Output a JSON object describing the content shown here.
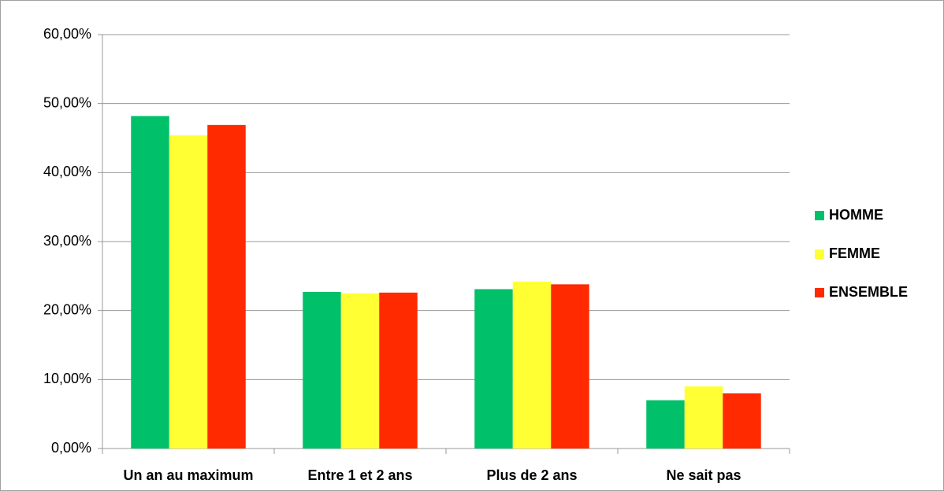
{
  "chart_data": {
    "type": "bar",
    "categories": [
      "Un an au maximum",
      "Entre 1 et 2 ans",
      "Plus de 2 ans",
      "Ne sait pas"
    ],
    "series": [
      {
        "name": "HOMME",
        "color": "#00c06a",
        "values": [
          48.2,
          22.7,
          23.1,
          7.0
        ]
      },
      {
        "name": "FEMME",
        "color": "#ffff33",
        "values": [
          45.4,
          22.5,
          24.2,
          9.0
        ]
      },
      {
        "name": "ENSEMBLE",
        "color": "#ff2a00",
        "values": [
          46.9,
          22.6,
          23.8,
          8.0
        ]
      }
    ],
    "ylim": [
      0,
      60
    ],
    "yticks": [
      {
        "value": 0,
        "label": "0,00%"
      },
      {
        "value": 10,
        "label": "10,00%"
      },
      {
        "value": 20,
        "label": "20,00%"
      },
      {
        "value": 30,
        "label": "30,00%"
      },
      {
        "value": 40,
        "label": "40,00%"
      },
      {
        "value": 50,
        "label": "50,00%"
      },
      {
        "value": 60,
        "label": "60,00%"
      }
    ],
    "grid": true,
    "legend": "right"
  }
}
